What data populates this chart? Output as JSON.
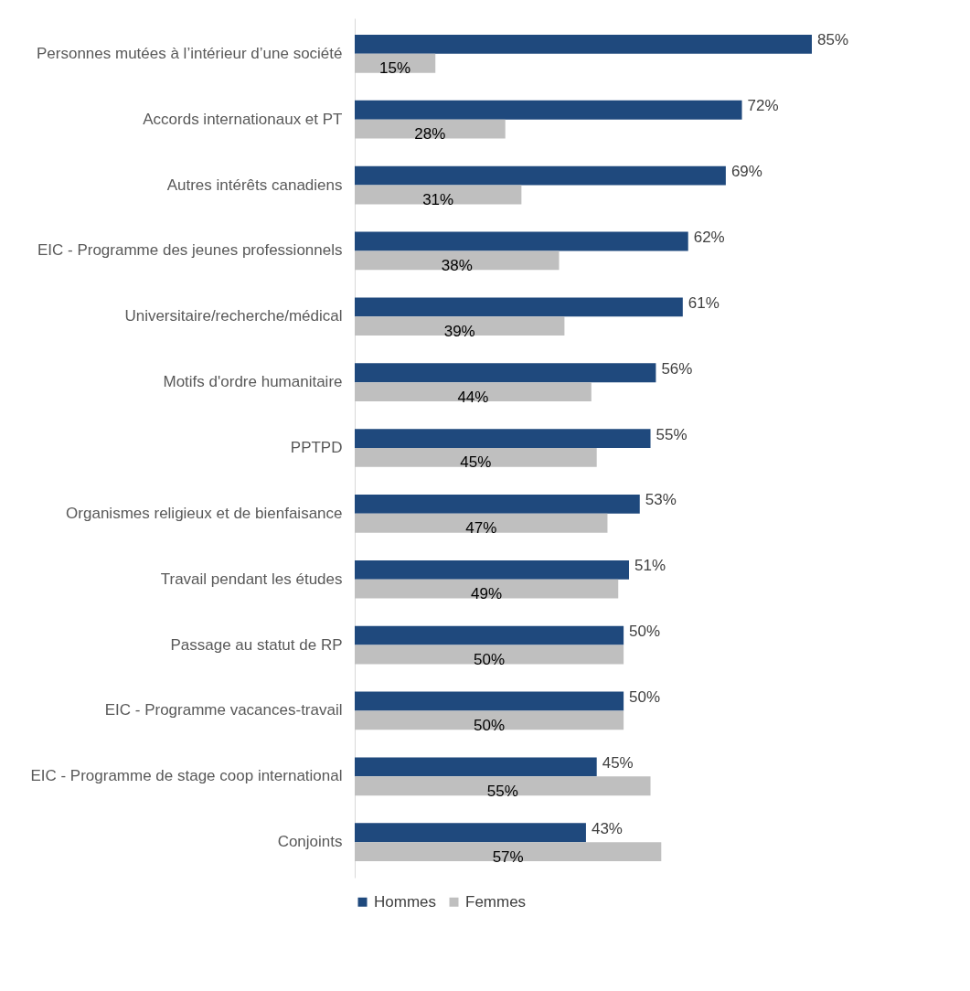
{
  "chart_data": {
    "type": "bar",
    "orientation": "horizontal",
    "categories": [
      "Personnes mutées à l’intérieur d’une société",
      "Accords internationaux et PT",
      "Autres intérêts canadiens",
      "EIC - Programme des jeunes professionnels",
      "Universitaire/recherche/médical",
      "Motifs d'ordre humanitaire",
      "PPTPD",
      "Organismes religieux et de bienfaisance",
      "Travail pendant les études",
      "Passage au statut de RP",
      "EIC - Programme vacances-travail",
      "EIC - Programme de stage coop international",
      "Conjoints"
    ],
    "series": [
      {
        "name": "Hommes",
        "color": "#1f497d",
        "values": [
          85,
          72,
          69,
          62,
          61,
          56,
          55,
          53,
          51,
          50,
          50,
          45,
          43
        ],
        "value_labels": [
          "85%",
          "72%",
          "69%",
          "62%",
          "61%",
          "56%",
          "55%",
          "53%",
          "51%",
          "50%",
          "50%",
          "45%",
          "43%"
        ]
      },
      {
        "name": "Femmes",
        "color": "#bfbfbf",
        "values": [
          15,
          28,
          31,
          38,
          39,
          44,
          45,
          47,
          49,
          50,
          50,
          55,
          57
        ],
        "value_labels": [
          "15%",
          "28%",
          "31%",
          "38%",
          "39%",
          "44%",
          "45%",
          "47%",
          "49%",
          "50%",
          "50%",
          "55%",
          "57%"
        ]
      }
    ],
    "legend": "bottom",
    "grid": false
  }
}
